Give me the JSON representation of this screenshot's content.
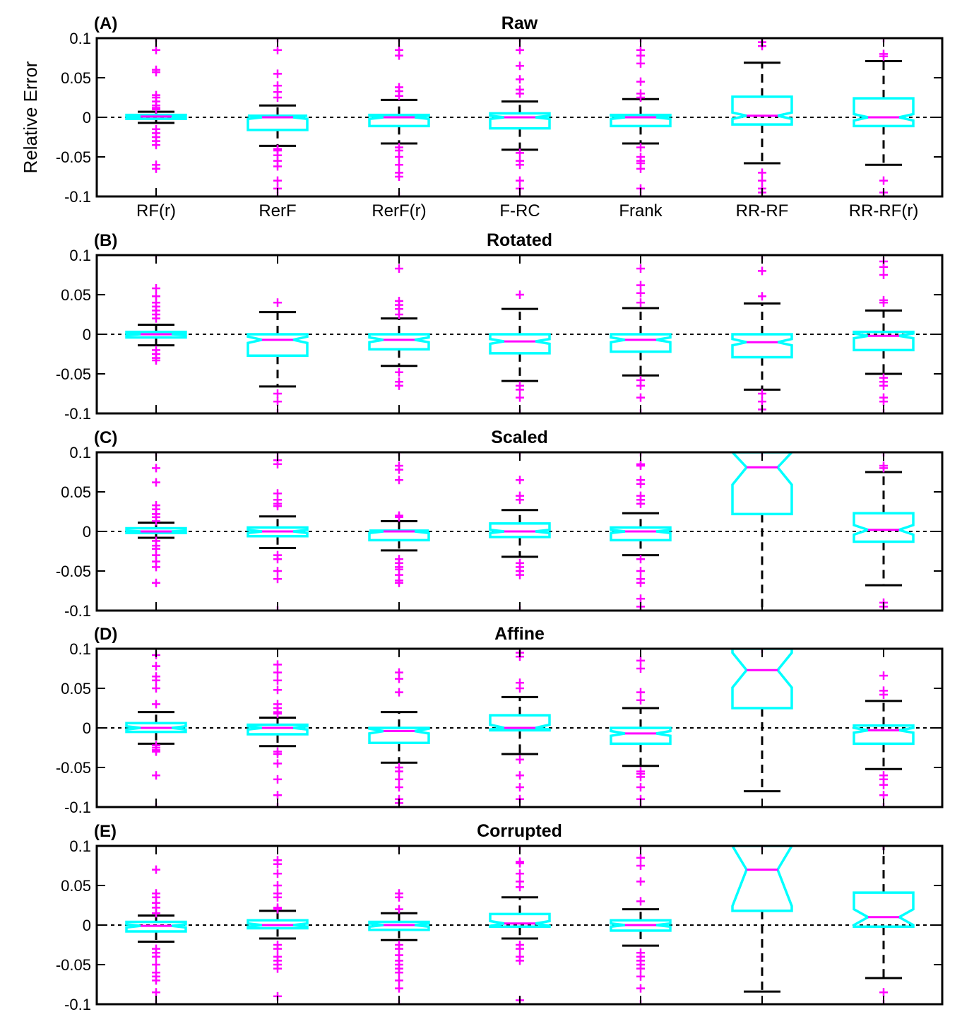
{
  "colors": {
    "box": "#00ffff",
    "median": "#ff00ff",
    "outlier": "#ff00ff",
    "whisker": "#000000",
    "axis": "#000000",
    "zero_line": "#000000"
  },
  "y_axis_label": "Relative Error",
  "chart_data": [
    {
      "type": "boxplot",
      "panel": "(A)",
      "title": "Raw",
      "ylabel": "Relative Error",
      "ylim": [
        -0.1,
        0.1
      ],
      "yticks": [
        "0.1",
        "0.05",
        "0",
        "-0.05",
        "-0.1"
      ],
      "categories": [
        "RF(r)",
        "RerF",
        "RerF(r)",
        "F-RC",
        "Frank",
        "RR-RF",
        "RR-RF(r)"
      ],
      "show_category_labels": true,
      "boxes": [
        {
          "q1": -0.002,
          "median": 0.001,
          "q3": 0.003,
          "notch_lo": 0.0,
          "notch_hi": 0.002,
          "whisker_lo": -0.007,
          "whisker_hi": 0.007,
          "outliers": [
            0.1,
            0.085,
            0.06,
            0.057,
            0.028,
            0.025,
            0.02,
            0.015,
            0.012,
            0.01,
            -0.015,
            -0.02,
            -0.025,
            -0.03,
            -0.035,
            -0.06,
            -0.065
          ]
        },
        {
          "q1": -0.016,
          "median": 0.0,
          "q3": 0.002,
          "notch_lo": -0.002,
          "notch_hi": 0.002,
          "whisker_lo": -0.036,
          "whisker_hi": 0.015,
          "outliers": [
            0.1,
            0.085,
            0.055,
            0.04,
            0.032,
            0.025,
            -0.04,
            -0.042,
            -0.048,
            -0.055,
            -0.062,
            -0.08,
            -0.09,
            -0.1
          ]
        },
        {
          "q1": -0.011,
          "median": 0.0,
          "q3": 0.003,
          "notch_lo": -0.002,
          "notch_hi": 0.002,
          "whisker_lo": -0.033,
          "whisker_hi": 0.022,
          "outliers": [
            0.1,
            0.085,
            0.078,
            0.038,
            0.033,
            0.027,
            -0.038,
            -0.042,
            -0.05,
            -0.06,
            -0.07,
            -0.075,
            -0.1
          ]
        },
        {
          "q1": -0.014,
          "median": 0.0,
          "q3": 0.005,
          "notch_lo": -0.002,
          "notch_hi": 0.002,
          "whisker_lo": -0.041,
          "whisker_hi": 0.02,
          "outliers": [
            0.1,
            0.085,
            0.065,
            0.048,
            0.035,
            0.03,
            -0.045,
            -0.055,
            -0.06,
            -0.08,
            -0.09,
            -0.1
          ]
        },
        {
          "q1": -0.011,
          "median": 0.0,
          "q3": 0.003,
          "notch_lo": -0.002,
          "notch_hi": 0.002,
          "whisker_lo": -0.033,
          "whisker_hi": 0.023,
          "outliers": [
            0.1,
            0.085,
            0.078,
            0.068,
            0.045,
            0.03,
            0.025,
            -0.038,
            -0.05,
            -0.055,
            -0.058,
            -0.065,
            -0.09,
            -0.1
          ]
        },
        {
          "q1": -0.009,
          "median": 0.002,
          "q3": 0.026,
          "notch_lo": -0.002,
          "notch_hi": 0.006,
          "whisker_lo": -0.058,
          "whisker_hi": 0.069,
          "outliers": [
            0.1,
            0.095,
            0.09,
            -0.07,
            -0.08,
            -0.09,
            -0.095
          ]
        },
        {
          "q1": -0.011,
          "median": 0.0,
          "q3": 0.024,
          "notch_lo": -0.004,
          "notch_hi": 0.004,
          "whisker_lo": -0.06,
          "whisker_hi": 0.071,
          "outliers": [
            0.1,
            0.08,
            0.077,
            -0.08,
            -0.095,
            -0.1
          ]
        }
      ]
    },
    {
      "type": "boxplot",
      "panel": "(B)",
      "title": "Rotated",
      "ylim": [
        -0.1,
        0.1
      ],
      "yticks": [
        "0.1",
        "0.05",
        "0",
        "-0.05",
        "-0.1"
      ],
      "categories": [
        "RF(r)",
        "RerF",
        "RerF(r)",
        "F-RC",
        "Frank",
        "RR-RF",
        "RR-RF(r)"
      ],
      "show_category_labels": false,
      "boxes": [
        {
          "q1": -0.004,
          "median": 0.0,
          "q3": 0.003,
          "notch_lo": -0.001,
          "notch_hi": 0.001,
          "whisker_lo": -0.014,
          "whisker_hi": 0.012,
          "outliers": [
            0.1,
            0.058,
            0.048,
            0.04,
            0.035,
            0.03,
            0.025,
            0.02,
            -0.02,
            -0.025,
            -0.03,
            -0.033
          ]
        },
        {
          "q1": -0.027,
          "median": -0.007,
          "q3": 0.0,
          "notch_lo": -0.011,
          "notch_hi": -0.003,
          "whisker_lo": -0.066,
          "whisker_hi": 0.028,
          "outliers": [
            0.04,
            -0.075,
            -0.085,
            -0.1
          ]
        },
        {
          "q1": -0.019,
          "median": -0.007,
          "q3": 0.0,
          "notch_lo": -0.01,
          "notch_hi": -0.004,
          "whisker_lo": -0.04,
          "whisker_hi": 0.02,
          "outliers": [
            0.083,
            0.042,
            0.037,
            0.032,
            0.025,
            -0.048,
            -0.06,
            -0.065
          ]
        },
        {
          "q1": -0.024,
          "median": -0.009,
          "q3": 0.0,
          "notch_lo": -0.012,
          "notch_hi": -0.006,
          "whisker_lo": -0.059,
          "whisker_hi": 0.032,
          "outliers": [
            0.05,
            -0.065,
            -0.07,
            -0.08,
            -0.1
          ]
        },
        {
          "q1": -0.022,
          "median": -0.007,
          "q3": 0.0,
          "notch_lo": -0.01,
          "notch_hi": -0.004,
          "whisker_lo": -0.052,
          "whisker_hi": 0.033,
          "outliers": [
            0.083,
            0.062,
            0.052,
            0.04,
            -0.058,
            -0.065,
            -0.08,
            -0.1
          ]
        },
        {
          "q1": -0.029,
          "median": -0.01,
          "q3": 0.0,
          "notch_lo": -0.014,
          "notch_hi": -0.006,
          "whisker_lo": -0.07,
          "whisker_hi": 0.039,
          "outliers": [
            0.1,
            0.08,
            0.048,
            -0.075,
            -0.085,
            -0.095
          ]
        },
        {
          "q1": -0.02,
          "median": -0.002,
          "q3": 0.003,
          "notch_lo": -0.005,
          "notch_hi": 0.001,
          "whisker_lo": -0.05,
          "whisker_hi": 0.03,
          "outliers": [
            0.092,
            0.085,
            0.075,
            0.043,
            0.04,
            -0.055,
            -0.06,
            -0.065,
            -0.08,
            -0.085,
            -0.1
          ]
        }
      ]
    },
    {
      "type": "boxplot",
      "panel": "(C)",
      "title": "Scaled",
      "ylim": [
        -0.1,
        0.1
      ],
      "yticks": [
        "0.1",
        "0.05",
        "0",
        "-0.05",
        "-0.1"
      ],
      "categories": [
        "RF(r)",
        "RerF",
        "RerF(r)",
        "F-RC",
        "Frank",
        "RR-RF",
        "RR-RF(r)"
      ],
      "show_category_labels": false,
      "boxes": [
        {
          "q1": -0.002,
          "median": 0.0,
          "q3": 0.004,
          "notch_lo": -0.001,
          "notch_hi": 0.001,
          "whisker_lo": -0.008,
          "whisker_hi": 0.011,
          "outliers": [
            0.1,
            0.08,
            0.062,
            0.033,
            0.028,
            0.022,
            0.018,
            0.013,
            -0.012,
            -0.018,
            -0.022,
            -0.03,
            -0.038,
            -0.045,
            -0.065
          ]
        },
        {
          "q1": -0.006,
          "median": 0.0,
          "q3": 0.005,
          "notch_lo": -0.002,
          "notch_hi": 0.002,
          "whisker_lo": -0.021,
          "whisker_hi": 0.019,
          "outliers": [
            0.1,
            0.09,
            0.085,
            0.048,
            0.04,
            0.035,
            0.032,
            -0.03,
            -0.035,
            -0.05,
            -0.06,
            -0.1
          ]
        },
        {
          "q1": -0.011,
          "median": 0.0,
          "q3": 0.001,
          "notch_lo": -0.002,
          "notch_hi": 0.002,
          "whisker_lo": -0.024,
          "whisker_hi": 0.013,
          "outliers": [
            0.1,
            0.083,
            0.078,
            0.065,
            0.02,
            0.018,
            -0.035,
            -0.04,
            -0.045,
            -0.048,
            -0.055,
            -0.062,
            -0.065
          ]
        },
        {
          "q1": -0.007,
          "median": 0.0,
          "q3": 0.01,
          "notch_lo": -0.002,
          "notch_hi": 0.002,
          "whisker_lo": -0.032,
          "whisker_hi": 0.027,
          "outliers": [
            0.1,
            0.065,
            0.045,
            0.04,
            -0.04,
            -0.045,
            -0.05,
            -0.055,
            -0.1
          ]
        },
        {
          "q1": -0.011,
          "median": 0.0,
          "q3": 0.005,
          "notch_lo": -0.002,
          "notch_hi": 0.002,
          "whisker_lo": -0.03,
          "whisker_hi": 0.023,
          "outliers": [
            0.1,
            0.085,
            0.083,
            0.065,
            0.06,
            0.045,
            0.04,
            0.035,
            -0.035,
            -0.05,
            -0.06,
            -0.065,
            -0.085,
            -0.095,
            -0.1
          ]
        },
        {
          "q1": 0.022,
          "median": 0.081,
          "q3": 0.1,
          "notch_lo": 0.059,
          "notch_hi": 0.103,
          "whisker_lo": -0.1,
          "whisker_hi": 0.1,
          "outliers": [
            0.1
          ]
        },
        {
          "q1": -0.013,
          "median": 0.002,
          "q3": 0.023,
          "notch_lo": -0.004,
          "notch_hi": 0.008,
          "whisker_lo": -0.068,
          "whisker_hi": 0.075,
          "outliers": [
            0.1,
            0.083,
            0.08,
            -0.09,
            -0.095,
            -0.1
          ]
        }
      ]
    },
    {
      "type": "boxplot",
      "panel": "(D)",
      "title": "Affine",
      "ylim": [
        -0.1,
        0.1
      ],
      "yticks": [
        "0.1",
        "0.05",
        "0",
        "-0.05",
        "-0.1"
      ],
      "categories": [
        "RF(r)",
        "RerF",
        "RerF(r)",
        "F-RC",
        "Frank",
        "RR-RF",
        "RR-RF(r)"
      ],
      "show_category_labels": false,
      "boxes": [
        {
          "q1": -0.005,
          "median": 0.0,
          "q3": 0.006,
          "notch_lo": -0.002,
          "notch_hi": 0.002,
          "whisker_lo": -0.02,
          "whisker_hi": 0.02,
          "outliers": [
            0.092,
            0.078,
            0.065,
            0.06,
            0.05,
            0.03,
            -0.022,
            -0.025,
            -0.028,
            -0.03,
            -0.06,
            -0.1
          ]
        },
        {
          "q1": -0.008,
          "median": 0.0,
          "q3": 0.004,
          "notch_lo": -0.002,
          "notch_hi": 0.002,
          "whisker_lo": -0.023,
          "whisker_hi": 0.013,
          "outliers": [
            0.08,
            0.07,
            0.06,
            0.048,
            0.03,
            0.025,
            0.02,
            0.018,
            -0.03,
            -0.033,
            -0.045,
            -0.065,
            -0.085,
            -0.1
          ]
        },
        {
          "q1": -0.019,
          "median": -0.004,
          "q3": 0.0,
          "notch_lo": -0.007,
          "notch_hi": -0.001,
          "whisker_lo": -0.044,
          "whisker_hi": 0.02,
          "outliers": [
            0.07,
            0.062,
            0.045,
            -0.05,
            -0.055,
            -0.065,
            -0.075,
            -0.09,
            -0.095
          ]
        },
        {
          "q1": -0.003,
          "median": 0.0,
          "q3": 0.016,
          "notch_lo": -0.002,
          "notch_hi": 0.004,
          "whisker_lo": -0.033,
          "whisker_hi": 0.039,
          "outliers": [
            0.1,
            0.095,
            0.09,
            0.057,
            0.05,
            -0.04,
            -0.06,
            -0.075,
            -0.09
          ]
        },
        {
          "q1": -0.02,
          "median": -0.007,
          "q3": 0.0,
          "notch_lo": -0.01,
          "notch_hi": -0.004,
          "whisker_lo": -0.048,
          "whisker_hi": 0.025,
          "outliers": [
            0.085,
            0.075,
            0.045,
            0.035,
            -0.055,
            -0.058,
            -0.062,
            -0.075,
            -0.09,
            -0.1
          ]
        },
        {
          "q1": 0.025,
          "median": 0.073,
          "q3": 0.1,
          "notch_lo": 0.051,
          "notch_hi": 0.095,
          "whisker_lo": -0.08,
          "whisker_hi": 0.1,
          "outliers": [
            0.1
          ]
        },
        {
          "q1": -0.02,
          "median": -0.003,
          "q3": 0.003,
          "notch_lo": -0.006,
          "notch_hi": 0.0,
          "whisker_lo": -0.052,
          "whisker_hi": 0.034,
          "outliers": [
            0.066,
            0.047,
            0.042,
            -0.06,
            -0.065,
            -0.072,
            -0.085,
            -0.1
          ]
        }
      ]
    },
    {
      "type": "boxplot",
      "panel": "(E)",
      "title": "Corrupted",
      "ylim": [
        -0.1,
        0.1
      ],
      "yticks": [
        "0.1",
        "0.05",
        "0",
        "-0.05",
        "-0.1"
      ],
      "categories": [
        "RF(r)",
        "RerF",
        "RerF(r)",
        "F-RC",
        "Frank",
        "RR-RF",
        "RR-RF(r)"
      ],
      "show_category_labels": false,
      "boxes": [
        {
          "q1": -0.008,
          "median": -0.001,
          "q3": 0.004,
          "notch_lo": -0.003,
          "notch_hi": 0.001,
          "whisker_lo": -0.021,
          "whisker_hi": 0.012,
          "outliers": [
            0.07,
            0.04,
            0.035,
            0.028,
            0.022,
            0.015,
            -0.03,
            -0.035,
            -0.04,
            -0.05,
            -0.06,
            -0.065,
            -0.07,
            -0.085,
            -0.1
          ]
        },
        {
          "q1": -0.004,
          "median": 0.0,
          "q3": 0.006,
          "notch_lo": -0.002,
          "notch_hi": 0.002,
          "whisker_lo": -0.017,
          "whisker_hi": 0.018,
          "outliers": [
            0.082,
            0.077,
            0.065,
            0.05,
            0.04,
            0.035,
            0.022,
            0.02,
            -0.025,
            -0.03,
            -0.04,
            -0.045,
            -0.05,
            -0.055,
            -0.09
          ]
        },
        {
          "q1": -0.006,
          "median": 0.0,
          "q3": 0.004,
          "notch_lo": -0.002,
          "notch_hi": 0.002,
          "whisker_lo": -0.019,
          "whisker_hi": 0.015,
          "outliers": [
            0.1,
            0.04,
            0.035,
            0.02,
            -0.025,
            -0.03,
            -0.038,
            -0.045,
            -0.05,
            -0.055,
            -0.06,
            -0.07,
            -0.08,
            -0.1
          ]
        },
        {
          "q1": -0.002,
          "median": 0.002,
          "q3": 0.014,
          "notch_lo": -0.001,
          "notch_hi": 0.005,
          "whisker_lo": -0.017,
          "whisker_hi": 0.035,
          "outliers": [
            0.1,
            0.08,
            0.078,
            0.065,
            0.055,
            0.048,
            -0.025,
            -0.03,
            -0.04,
            -0.045,
            -0.095
          ]
        },
        {
          "q1": -0.007,
          "median": 0.0,
          "q3": 0.006,
          "notch_lo": -0.002,
          "notch_hi": 0.002,
          "whisker_lo": -0.026,
          "whisker_hi": 0.02,
          "outliers": [
            0.1,
            0.085,
            0.075,
            0.055,
            0.03,
            -0.035,
            -0.04,
            -0.045,
            -0.05,
            -0.055,
            -0.065,
            -0.08,
            -0.1
          ]
        },
        {
          "q1": 0.018,
          "median": 0.07,
          "q3": 0.1,
          "notch_lo": 0.024,
          "notch_hi": 0.103,
          "whisker_lo": -0.084,
          "whisker_hi": 0.1,
          "outliers": [
            0.1
          ]
        },
        {
          "q1": -0.002,
          "median": 0.01,
          "q3": 0.041,
          "notch_lo": 0.0,
          "notch_hi": 0.02,
          "whisker_lo": -0.067,
          "whisker_hi": 0.1,
          "outliers": [
            0.1,
            -0.085,
            -0.1
          ]
        }
      ]
    }
  ]
}
